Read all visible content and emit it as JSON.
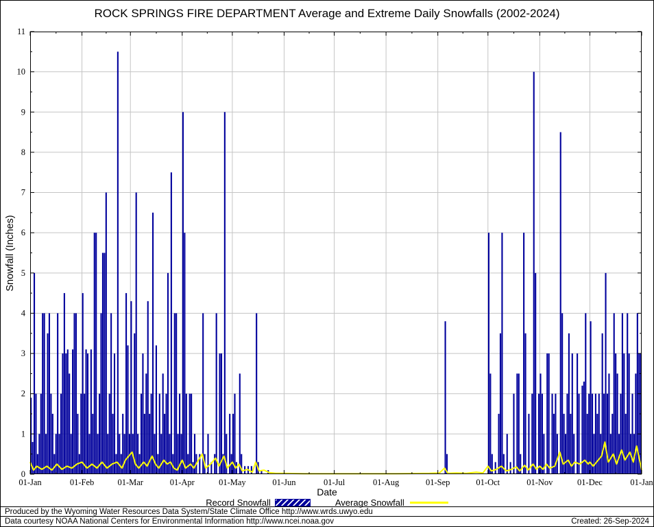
{
  "title": "ROCK SPRINGS FIRE DEPARTMENT Average and Extreme Daily Snowfalls (2002-2024)",
  "legend": {
    "record_label": "Record Snowfall",
    "average_label": "Average Snowfall"
  },
  "footer": {
    "line1": "Produced by the Wyoming Water Resources Data System/State Climate Office http://www.wrds.uwyo.edu",
    "line2": "Data courtesy NOAA National Centers for Environmental Information http://www.ncei.noaa.gov",
    "created": "Created: 26-Sep-2024"
  },
  "colors": {
    "bar": "#00009c",
    "line": "#ffff00",
    "grid": "#c4c4c4",
    "frame": "#000000",
    "background": "#ffffff"
  },
  "chart_data": {
    "type": "bar",
    "title": "ROCK SPRINGS FIRE DEPARTMENT Average and Extreme Daily Snowfalls (2002-2024)",
    "xlabel": "Date",
    "ylabel": "Snowfall (Inches)",
    "ylim": [
      0,
      11
    ],
    "grid": true,
    "legend_position": "bottom",
    "days_in_year": 366,
    "y_ticks": [
      0,
      1,
      2,
      3,
      4,
      5,
      6,
      7,
      8,
      9,
      10,
      11
    ],
    "x_tick_labels": [
      "01-Jan",
      "01-Feb",
      "01-Mar",
      "01-Apr",
      "01-May",
      "01-Jun",
      "01-Jul",
      "01-Aug",
      "01-Sep",
      "01-Oct",
      "01-Nov",
      "01-Dec",
      "01-Jan"
    ],
    "month_start_days": [
      0,
      31,
      60,
      91,
      121,
      152,
      182,
      213,
      244,
      274,
      305,
      335,
      366
    ],
    "series": [
      {
        "name": "Record Snowfall",
        "type": "bar",
        "color": "#00009c",
        "points": [
          [
            1,
            1.9
          ],
          [
            2,
            0.8
          ],
          [
            3,
            5.0
          ],
          [
            4,
            2.0
          ],
          [
            5,
            0.5
          ],
          [
            6,
            1.0
          ],
          [
            7,
            2.0
          ],
          [
            8,
            4.0
          ],
          [
            9,
            4.0
          ],
          [
            10,
            1.0
          ],
          [
            11,
            3.5
          ],
          [
            12,
            4.0
          ],
          [
            13,
            2.0
          ],
          [
            14,
            1.5
          ],
          [
            15,
            0.5
          ],
          [
            16,
            1.0
          ],
          [
            17,
            4.0
          ],
          [
            18,
            1.0
          ],
          [
            19,
            2.0
          ],
          [
            20,
            3.0
          ],
          [
            21,
            4.5
          ],
          [
            22,
            3.0
          ],
          [
            23,
            3.1
          ],
          [
            24,
            2.5
          ],
          [
            25,
            1.0
          ],
          [
            26,
            3.1
          ],
          [
            27,
            4.0
          ],
          [
            28,
            4.0
          ],
          [
            29,
            1.5
          ],
          [
            30,
            0.5
          ],
          [
            31,
            2.0
          ],
          [
            32,
            4.5
          ],
          [
            33,
            2.0
          ],
          [
            34,
            3.1
          ],
          [
            35,
            3.0
          ],
          [
            36,
            1.0
          ],
          [
            37,
            3.1
          ],
          [
            38,
            1.5
          ],
          [
            39,
            6.0
          ],
          [
            40,
            6.0
          ],
          [
            41,
            1.0
          ],
          [
            42,
            2.0
          ],
          [
            43,
            4.0
          ],
          [
            44,
            5.5
          ],
          [
            45,
            5.5
          ],
          [
            46,
            7.0
          ],
          [
            47,
            1.0
          ],
          [
            48,
            2.0
          ],
          [
            49,
            4.0
          ],
          [
            50,
            1.5
          ],
          [
            51,
            3.0
          ],
          [
            52,
            0.5
          ],
          [
            53,
            10.5
          ],
          [
            54,
            1.0
          ],
          [
            55,
            0.5
          ],
          [
            56,
            1.5
          ],
          [
            57,
            1.0
          ],
          [
            58,
            4.5
          ],
          [
            59,
            3.2
          ],
          [
            60,
            1.0
          ],
          [
            61,
            4.3
          ],
          [
            62,
            1.0
          ],
          [
            63,
            3.5
          ],
          [
            64,
            7.0
          ],
          [
            65,
            1.0
          ],
          [
            66,
            0.5
          ],
          [
            67,
            2.0
          ],
          [
            68,
            3.0
          ],
          [
            69,
            1.5
          ],
          [
            70,
            2.5
          ],
          [
            71,
            4.3
          ],
          [
            72,
            1.5
          ],
          [
            73,
            2.0
          ],
          [
            74,
            6.5
          ],
          [
            75,
            1.0
          ],
          [
            76,
            3.2
          ],
          [
            77,
            0.5
          ],
          [
            78,
            2.0
          ],
          [
            79,
            1.0
          ],
          [
            80,
            2.5
          ],
          [
            81,
            1.5
          ],
          [
            82,
            2.0
          ],
          [
            83,
            5.0
          ],
          [
            84,
            1.0
          ],
          [
            85,
            7.5
          ],
          [
            86,
            0.5
          ],
          [
            87,
            4.0
          ],
          [
            88,
            4.0
          ],
          [
            89,
            1.0
          ],
          [
            90,
            2.0
          ],
          [
            91,
            1.0
          ],
          [
            92,
            9.0
          ],
          [
            93,
            6.0
          ],
          [
            94,
            2.0
          ],
          [
            95,
            0.5
          ],
          [
            96,
            2.0
          ],
          [
            97,
            2.0
          ],
          [
            98,
            0.3
          ],
          [
            99,
            1.0
          ],
          [
            100,
            0.5
          ],
          [
            102,
            0.5
          ],
          [
            104,
            4.0
          ],
          [
            105,
            0.5
          ],
          [
            107,
            1.0
          ],
          [
            109,
            0.3
          ],
          [
            111,
            0.5
          ],
          [
            112,
            4.0
          ],
          [
            114,
            3.0
          ],
          [
            115,
            3.0
          ],
          [
            116,
            0.5
          ],
          [
            117,
            9.0
          ],
          [
            118,
            1.0
          ],
          [
            120,
            1.5
          ],
          [
            121,
            0.5
          ],
          [
            122,
            1.5
          ],
          [
            123,
            2.0
          ],
          [
            124,
            0.3
          ],
          [
            126,
            2.5
          ],
          [
            127,
            0.5
          ],
          [
            129,
            0.2
          ],
          [
            131,
            0.2
          ],
          [
            133,
            0.2
          ],
          [
            136,
            4.0
          ],
          [
            137,
            0.3
          ],
          [
            139,
            0.1
          ],
          [
            143,
            0.1
          ],
          [
            249,
            3.8
          ],
          [
            250,
            0.5
          ],
          [
            275,
            6.0
          ],
          [
            276,
            2.5
          ],
          [
            277,
            0.5
          ],
          [
            279,
            0.3
          ],
          [
            281,
            1.5
          ],
          [
            282,
            3.5
          ],
          [
            283,
            6.0
          ],
          [
            284,
            0.5
          ],
          [
            286,
            1.0
          ],
          [
            288,
            0.3
          ],
          [
            290,
            2.0
          ],
          [
            292,
            2.5
          ],
          [
            293,
            2.5
          ],
          [
            294,
            0.5
          ],
          [
            296,
            6.0
          ],
          [
            297,
            3.5
          ],
          [
            299,
            1.5
          ],
          [
            301,
            2.0
          ],
          [
            302,
            10.0
          ],
          [
            303,
            5.0
          ],
          [
            305,
            2.0
          ],
          [
            306,
            2.5
          ],
          [
            307,
            2.0
          ],
          [
            308,
            1.0
          ],
          [
            310,
            3.0
          ],
          [
            311,
            3.0
          ],
          [
            313,
            2.0
          ],
          [
            314,
            1.5
          ],
          [
            315,
            2.0
          ],
          [
            316,
            1.0
          ],
          [
            318,
            8.5
          ],
          [
            319,
            4.0
          ],
          [
            320,
            1.5
          ],
          [
            321,
            1.0
          ],
          [
            322,
            2.0
          ],
          [
            323,
            3.5
          ],
          [
            324,
            1.5
          ],
          [
            325,
            3.0
          ],
          [
            326,
            1.0
          ],
          [
            328,
            3.0
          ],
          [
            329,
            2.0
          ],
          [
            331,
            2.2
          ],
          [
            332,
            2.3
          ],
          [
            333,
            4.0
          ],
          [
            334,
            1.5
          ],
          [
            335,
            2.0
          ],
          [
            336,
            3.8
          ],
          [
            337,
            2.0
          ],
          [
            338,
            1.0
          ],
          [
            339,
            2.0
          ],
          [
            340,
            1.5
          ],
          [
            341,
            2.0
          ],
          [
            342,
            1.0
          ],
          [
            343,
            3.5
          ],
          [
            344,
            2.0
          ],
          [
            345,
            5.0
          ],
          [
            346,
            2.0
          ],
          [
            347,
            2.5
          ],
          [
            348,
            1.0
          ],
          [
            349,
            1.5
          ],
          [
            350,
            4.0
          ],
          [
            351,
            3.0
          ],
          [
            352,
            2.5
          ],
          [
            353,
            1.0
          ],
          [
            354,
            2.0
          ],
          [
            355,
            4.0
          ],
          [
            356,
            3.0
          ],
          [
            357,
            1.5
          ],
          [
            358,
            4.0
          ],
          [
            359,
            3.0
          ],
          [
            360,
            1.0
          ],
          [
            361,
            2.0
          ],
          [
            362,
            1.0
          ],
          [
            363,
            2.5
          ],
          [
            364,
            4.0
          ],
          [
            365,
            3.0
          ],
          [
            366,
            3.0
          ]
        ]
      },
      {
        "name": "Average Snowfall",
        "type": "line",
        "color": "#ffff00",
        "points": [
          [
            1,
            0.3
          ],
          [
            3,
            0.1
          ],
          [
            5,
            0.2
          ],
          [
            8,
            0.12
          ],
          [
            11,
            0.2
          ],
          [
            14,
            0.1
          ],
          [
            17,
            0.25
          ],
          [
            20,
            0.12
          ],
          [
            23,
            0.2
          ],
          [
            26,
            0.15
          ],
          [
            29,
            0.25
          ],
          [
            32,
            0.3
          ],
          [
            35,
            0.15
          ],
          [
            38,
            0.25
          ],
          [
            41,
            0.15
          ],
          [
            44,
            0.3
          ],
          [
            47,
            0.15
          ],
          [
            50,
            0.25
          ],
          [
            53,
            0.3
          ],
          [
            56,
            0.15
          ],
          [
            58,
            0.35
          ],
          [
            60,
            0.45
          ],
          [
            62,
            0.55
          ],
          [
            64,
            0.25
          ],
          [
            66,
            0.15
          ],
          [
            69,
            0.3
          ],
          [
            71,
            0.2
          ],
          [
            74,
            0.45
          ],
          [
            76,
            0.25
          ],
          [
            78,
            0.15
          ],
          [
            81,
            0.35
          ],
          [
            83,
            0.25
          ],
          [
            85,
            0.3
          ],
          [
            87,
            0.15
          ],
          [
            89,
            0.1
          ],
          [
            92,
            0.35
          ],
          [
            94,
            0.15
          ],
          [
            97,
            0.25
          ],
          [
            99,
            0.15
          ],
          [
            101,
            0.3
          ],
          [
            104,
            0.5
          ],
          [
            106,
            0.15
          ],
          [
            109,
            0.25
          ],
          [
            112,
            0.4
          ],
          [
            114,
            0.2
          ],
          [
            117,
            0.45
          ],
          [
            119,
            0.15
          ],
          [
            122,
            0.3
          ],
          [
            124,
            0.15
          ],
          [
            126,
            0.25
          ],
          [
            128,
            0.08
          ],
          [
            131,
            0.12
          ],
          [
            134,
            0.05
          ],
          [
            136,
            0.3
          ],
          [
            138,
            0.08
          ],
          [
            141,
            0.1
          ],
          [
            144,
            0.04
          ],
          [
            148,
            0.02
          ],
          [
            153,
            0.02
          ],
          [
            165,
            0.01
          ],
          [
            180,
            0.01
          ],
          [
            200,
            0.01
          ],
          [
            220,
            0.01
          ],
          [
            240,
            0.02
          ],
          [
            246,
            0.03
          ],
          [
            249,
            0.15
          ],
          [
            251,
            0.02
          ],
          [
            256,
            0.03
          ],
          [
            262,
            0.02
          ],
          [
            268,
            0.05
          ],
          [
            272,
            0.03
          ],
          [
            275,
            0.2
          ],
          [
            277,
            0.08
          ],
          [
            280,
            0.12
          ],
          [
            283,
            0.2
          ],
          [
            286,
            0.08
          ],
          [
            289,
            0.12
          ],
          [
            292,
            0.18
          ],
          [
            294,
            0.08
          ],
          [
            297,
            0.22
          ],
          [
            299,
            0.1
          ],
          [
            302,
            0.25
          ],
          [
            304,
            0.12
          ],
          [
            306,
            0.2
          ],
          [
            308,
            0.12
          ],
          [
            310,
            0.25
          ],
          [
            312,
            0.15
          ],
          [
            315,
            0.2
          ],
          [
            318,
            0.55
          ],
          [
            320,
            0.25
          ],
          [
            323,
            0.35
          ],
          [
            325,
            0.2
          ],
          [
            327,
            0.3
          ],
          [
            330,
            0.25
          ],
          [
            333,
            0.35
          ],
          [
            335,
            0.25
          ],
          [
            336,
            0.3
          ],
          [
            338,
            0.2
          ],
          [
            340,
            0.3
          ],
          [
            343,
            0.45
          ],
          [
            345,
            0.8
          ],
          [
            347,
            0.3
          ],
          [
            350,
            0.5
          ],
          [
            352,
            0.25
          ],
          [
            355,
            0.6
          ],
          [
            357,
            0.35
          ],
          [
            360,
            0.55
          ],
          [
            362,
            0.3
          ],
          [
            364,
            0.7
          ],
          [
            366,
            0.3
          ],
          [
            367,
            0.1
          ]
        ]
      }
    ]
  }
}
